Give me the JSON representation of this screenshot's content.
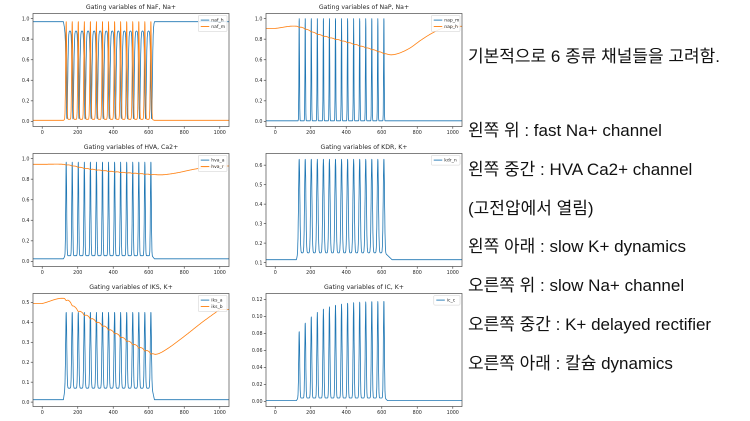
{
  "page": {
    "background": "#ffffff"
  },
  "right_panel": {
    "intro": "기본적으로 6 종류 채널들을 고려함.",
    "lines": [
      "왼쪽 위 : fast Na+ channel",
      "왼쪽 중간 : HVA Ca2+ channel",
      "(고전압에서 열림)",
      "왼쪽 아래 : slow K+ dynamics",
      "오른쪽 위 : slow Na+ channel",
      "오른쪽 중간 : K+ delayed rectifier",
      "오른쪽 아래 : 칼슘 dynamics"
    ]
  },
  "colors": {
    "series_blue": "#1f77b4",
    "series_orange": "#ff7f0e",
    "spine": "#4a4a4a",
    "tick_text": "#262626"
  },
  "chart_data": [
    {
      "type": "line",
      "title": "Gating variables of NaF, Na+",
      "xlabel": "",
      "ylabel": "",
      "grid": false,
      "legend_position": "upper right",
      "xlim": [
        -52,
        1052
      ],
      "ylim": [
        -0.05,
        1.05
      ],
      "xticks": [
        0,
        200,
        400,
        600,
        800,
        1000
      ],
      "xtick_labels": [
        "0",
        "200",
        "400",
        "600",
        "800",
        "1000"
      ],
      "yticks": [
        0.0,
        0.2,
        0.4,
        0.6,
        0.8,
        1.0
      ],
      "ytick_labels": [
        "0.0",
        "0.2",
        "0.4",
        "0.6",
        "0.8",
        "1.0"
      ],
      "spike_train": {
        "start": 135,
        "end": 612,
        "count": 15
      },
      "series": [
        {
          "name": "naf_h",
          "color": "#1f77b4",
          "kind": "spikes_down",
          "rest": 0.97,
          "train_top": 0.88,
          "min": 0.025,
          "width": 6,
          "center_offset": 4
        },
        {
          "name": "naf_m",
          "color": "#ff7f0e",
          "kind": "spikes_up",
          "rest": 0.01,
          "train_base": 0.02,
          "peak": 0.97,
          "width": 4.2
        }
      ]
    },
    {
      "type": "line",
      "title": "Gating variables of NaP, Na+",
      "xlabel": "",
      "ylabel": "",
      "grid": false,
      "legend_position": "upper right",
      "xlim": [
        -52,
        1052
      ],
      "ylim": [
        -0.05,
        1.05
      ],
      "xticks": [
        0,
        200,
        400,
        600,
        800,
        1000
      ],
      "xtick_labels": [
        "0",
        "200",
        "400",
        "600",
        "800",
        "1000"
      ],
      "yticks": [
        0.0,
        0.2,
        0.4,
        0.6,
        0.8,
        1.0
      ],
      "ytick_labels": [
        "0.0",
        "0.2",
        "0.4",
        "0.6",
        "0.8",
        "1.0"
      ],
      "spike_train": {
        "start": 135,
        "end": 612,
        "count": 15
      },
      "series": [
        {
          "name": "nap_m",
          "color": "#1f77b4",
          "kind": "spikes_up",
          "rest": 0.005,
          "train_base": 0.005,
          "peak": 1.0,
          "width": 2.4
        },
        {
          "name": "nap_h",
          "color": "#ff7f0e",
          "kind": "envelope",
          "ripple": 0.006,
          "points": [
            [
              0,
              0.905
            ],
            [
              125,
              0.925
            ],
            [
              250,
              0.845
            ],
            [
              400,
              0.775
            ],
            [
              550,
              0.7
            ],
            [
              620,
              0.66
            ],
            [
              655,
              0.648
            ],
            [
              700,
              0.665
            ],
            [
              760,
              0.715
            ],
            [
              820,
              0.79
            ],
            [
              880,
              0.855
            ],
            [
              940,
              0.905
            ],
            [
              1000,
              0.925
            ]
          ]
        }
      ]
    },
    {
      "type": "line",
      "title": "Gating variables of HVA, Ca2+",
      "xlabel": "",
      "ylabel": "",
      "grid": false,
      "legend_position": "upper right",
      "xlim": [
        -52,
        1052
      ],
      "ylim": [
        -0.05,
        1.05
      ],
      "xticks": [
        0,
        200,
        400,
        600,
        800,
        1000
      ],
      "xtick_labels": [
        "0",
        "200",
        "400",
        "600",
        "800",
        "1000"
      ],
      "yticks": [
        0.0,
        0.2,
        0.4,
        0.6,
        0.8,
        1.0
      ],
      "ytick_labels": [
        "0.0",
        "0.2",
        "0.4",
        "0.6",
        "0.8",
        "1.0"
      ],
      "spike_train": {
        "start": 135,
        "end": 612,
        "count": 15
      },
      "series": [
        {
          "name": "hva_a",
          "color": "#1f77b4",
          "kind": "spikes_up",
          "rest": 0.025,
          "train_base": 0.055,
          "peak": 0.965,
          "width": 3.6
        },
        {
          "name": "hva_r",
          "color": "#ff7f0e",
          "kind": "envelope",
          "ripple": 0.005,
          "points": [
            [
              0,
              0.945
            ],
            [
              130,
              0.943
            ],
            [
              250,
              0.905
            ],
            [
              400,
              0.875
            ],
            [
              550,
              0.855
            ],
            [
              630,
              0.845
            ],
            [
              680,
              0.843
            ],
            [
              760,
              0.862
            ],
            [
              850,
              0.895
            ],
            [
              930,
              0.917
            ],
            [
              1000,
              0.928
            ]
          ]
        }
      ]
    },
    {
      "type": "line",
      "title": "Gating variables of KDR, K+",
      "xlabel": "",
      "ylabel": "",
      "grid": false,
      "legend_position": "upper right",
      "xlim": [
        -52,
        1052
      ],
      "ylim": [
        0.08,
        0.66
      ],
      "xticks": [
        0,
        200,
        400,
        600,
        800,
        1000
      ],
      "xtick_labels": [
        "0",
        "200",
        "400",
        "600",
        "800",
        "1000"
      ],
      "yticks": [
        0.1,
        0.2,
        0.3,
        0.4,
        0.5,
        0.6
      ],
      "ytick_labels": [
        "0.1",
        "0.2",
        "0.3",
        "0.4",
        "0.5",
        "0.6"
      ],
      "spike_train": {
        "start": 135,
        "end": 612,
        "count": 15
      },
      "series": [
        {
          "name": "kdr_n",
          "color": "#1f77b4",
          "kind": "spikes_up",
          "rest": 0.115,
          "train_base": 0.15,
          "peak": 0.63,
          "width": 5.2,
          "blend_out": 40
        }
      ]
    },
    {
      "type": "line",
      "title": "Gating variables of IKS, K+",
      "xlabel": "",
      "ylabel": "",
      "grid": false,
      "legend_position": "upper right",
      "xlim": [
        -52,
        1052
      ],
      "ylim": [
        -0.022,
        0.545
      ],
      "xticks": [
        0,
        200,
        400,
        600,
        800,
        1000
      ],
      "xtick_labels": [
        "0",
        "200",
        "400",
        "600",
        "800",
        "1000"
      ],
      "yticks": [
        0.0,
        0.1,
        0.2,
        0.3,
        0.4,
        0.5
      ],
      "ytick_labels": [
        "0.0",
        "0.1",
        "0.2",
        "0.3",
        "0.4",
        "0.5"
      ],
      "spike_train": {
        "start": 135,
        "end": 612,
        "count": 15
      },
      "series": [
        {
          "name": "iks_a",
          "color": "#1f77b4",
          "kind": "spikes_up",
          "rest": 0.012,
          "train_base": 0.07,
          "peak": 0.45,
          "width": 4.4
        },
        {
          "name": "iks_b",
          "color": "#ff7f0e",
          "kind": "envelope",
          "ripple": 0.008,
          "points": [
            [
              0,
              0.495
            ],
            [
              128,
              0.52
            ],
            [
              200,
              0.465
            ],
            [
              300,
              0.41
            ],
            [
              400,
              0.355
            ],
            [
              500,
              0.3
            ],
            [
              600,
              0.255
            ],
            [
              640,
              0.24
            ],
            [
              700,
              0.265
            ],
            [
              800,
              0.33
            ],
            [
              900,
              0.4
            ],
            [
              1000,
              0.465
            ]
          ]
        }
      ]
    },
    {
      "type": "line",
      "title": "Gating variables of IC, K+",
      "xlabel": "",
      "ylabel": "",
      "grid": false,
      "legend_position": "upper right",
      "xlim": [
        -52,
        1052
      ],
      "ylim": [
        -0.006,
        0.127
      ],
      "xticks": [
        0,
        200,
        400,
        600,
        800,
        1000
      ],
      "xtick_labels": [
        "0",
        "200",
        "400",
        "600",
        "800",
        "1000"
      ],
      "yticks": [
        0.0,
        0.02,
        0.04,
        0.06,
        0.08,
        0.1,
        0.12
      ],
      "ytick_labels": [
        "0.00",
        "0.02",
        "0.04",
        "0.06",
        "0.08",
        "0.10",
        "0.12"
      ],
      "spike_train": {
        "start": 135,
        "end": 612,
        "count": 15
      },
      "series": [
        {
          "name": "ic_c",
          "color": "#1f77b4",
          "kind": "spikes_up",
          "rest": 0.001,
          "train_base": 0.004,
          "width": 4,
          "peak_ramp": {
            "from": 0.082,
            "to": 0.118,
            "tau": 3
          }
        }
      ]
    }
  ]
}
